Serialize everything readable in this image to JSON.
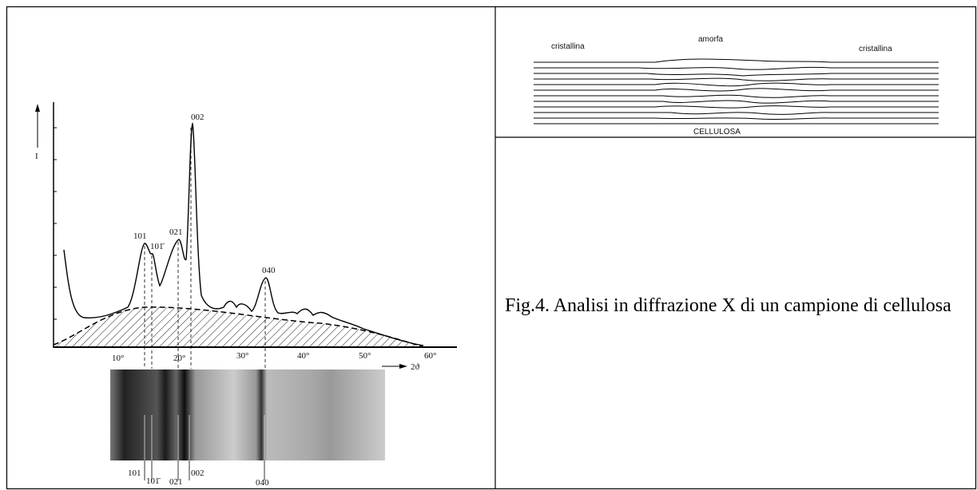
{
  "figure": {
    "y_axis_label": "I",
    "x_axis_label": "2ϑ",
    "x_ticks": [
      "10°",
      "20°",
      "30°",
      "40°",
      "50°",
      "60°"
    ],
    "peaks": [
      "101",
      "101̄",
      "021",
      "002",
      "040"
    ],
    "photo_labels": [
      "101",
      "101̄",
      "021",
      "002",
      "040"
    ]
  },
  "cellulose": {
    "left": "cristallina",
    "middle": "amorfa",
    "right": "cristallina",
    "bottom": "CELLULOSA"
  },
  "caption": "Fig.4. Analisi in diffrazione X di un campione di cellulosa"
}
